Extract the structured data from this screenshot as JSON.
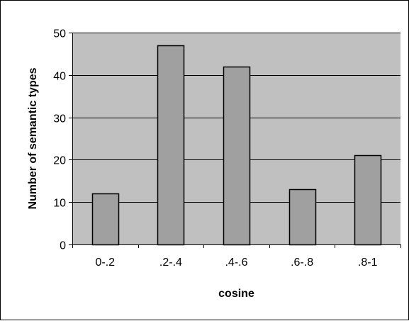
{
  "chart_data": {
    "type": "bar",
    "title": "",
    "xlabel": "cosine",
    "ylabel": "Number of semantic types",
    "categories": [
      "0-.2",
      ".2-.4",
      ".4-.6",
      ".6-.8",
      ".8-1"
    ],
    "values": [
      12,
      47,
      42,
      13,
      21
    ],
    "ylim": [
      0,
      50
    ],
    "yticks": [
      "0",
      "10",
      "20",
      "30",
      "40",
      "50"
    ],
    "grid": true,
    "legend": "none",
    "colors": {
      "plot_background": "#c0c0c0",
      "bar_fill": "#a0a0a0",
      "bar_stroke": "#000000",
      "gridline": "#000000"
    }
  }
}
